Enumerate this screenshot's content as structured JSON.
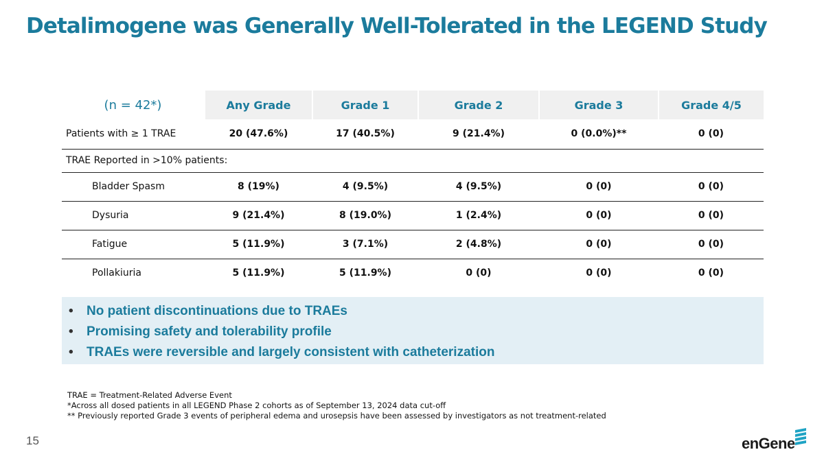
{
  "title": "Detalimogene was Generally Well-Tolerated in the LEGEND Study",
  "table": {
    "n_label": "(n = 42*)",
    "headers": [
      "Any Grade",
      "Grade 1",
      "Grade 2",
      "Grade 3",
      "Grade 4/5"
    ],
    "row_total": {
      "label": "Patients with ≥ 1 TRAE",
      "values": [
        "20 (47.6%)",
        "17 (40.5%)",
        "9 (21.4%)",
        "0 (0.0%)**",
        "0 (0)"
      ]
    },
    "section_label": "TRAE Reported in >10% patients:",
    "rows": [
      {
        "label": "Bladder Spasm",
        "values": [
          "8 (19%)",
          "4 (9.5%)",
          "4 (9.5%)",
          "0 (0)",
          "0 (0)"
        ]
      },
      {
        "label": "Dysuria",
        "values": [
          "9 (21.4%)",
          "8 (19.0%)",
          "1 (2.4%)",
          "0 (0)",
          "0 (0)"
        ]
      },
      {
        "label": "Fatigue",
        "values": [
          "5 (11.9%)",
          "3 (7.1%)",
          "2 (4.8%)",
          "0 (0)",
          "0 (0)"
        ]
      },
      {
        "label": "Pollakiuria",
        "values": [
          "5 (11.9%)",
          "5 (11.9%)",
          "0 (0)",
          "0 (0)",
          "0 (0)"
        ]
      }
    ]
  },
  "bullets": [
    "No patient discontinuations due to TRAEs",
    "Promising safety and tolerability profile",
    "TRAEs were reversible and largely consistent with catheterization"
  ],
  "footnotes": [
    "TRAE = Treatment-Related Adverse Event",
    "*Across all dosed patients in all LEGEND Phase 2 cohorts as of September 13, 2024 data cut-off",
    "** Previously reported Grade 3 events of peripheral edema and urosepsis have been assessed by investigators as not treatment-related"
  ],
  "page_number": "15",
  "logo_text": "enGene",
  "colors": {
    "accent": "#1b7b9c",
    "box_bg": "#e3eff5",
    "header_bg": "#f0f0f0"
  }
}
